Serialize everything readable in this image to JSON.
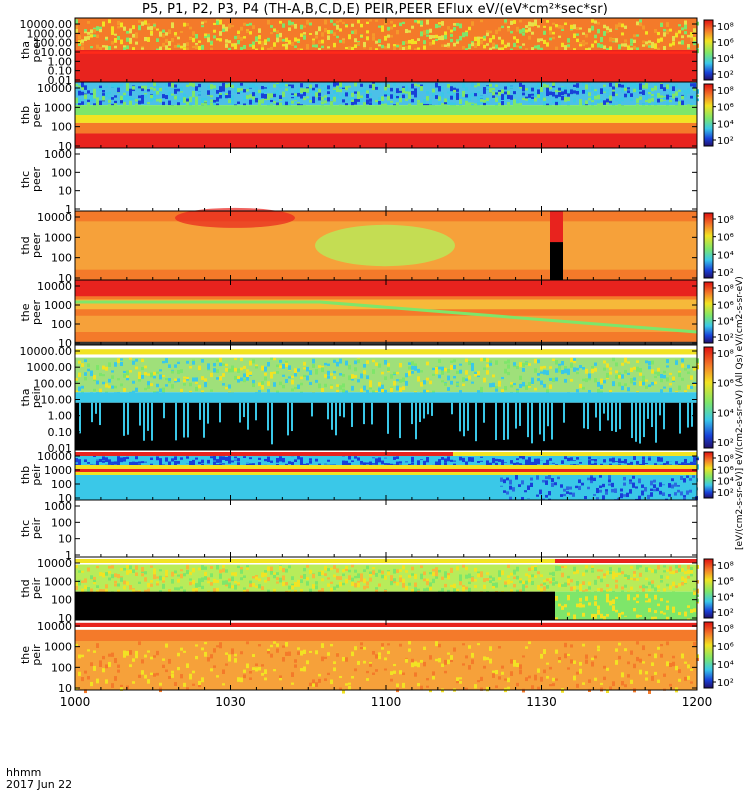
{
  "title": "P5, P1, P2, P3, P4 (TH-A,B,C,D,E) PEIR,PEER EFlux eV/(eV*cm²*sec*sr)",
  "colorbar_label": "[eV/(cm2-s-sr-eV)] eV/(cm2-s-sr-eV) (All Qs) eV/(cm2-s-sr-eV)",
  "footer": {
    "line1": "hhmm",
    "line2": "2017 Jun 22"
  },
  "x_ticks": [
    "1000",
    "1030",
    "1100",
    "1130",
    "1200"
  ],
  "colorbar_ticks": [
    "10⁸",
    "10⁶",
    "10⁴",
    "10²"
  ],
  "colors": {
    "red": "#e8231e",
    "orange": "#f47a2a",
    "yellow": "#f2e323",
    "green": "#7ee66a",
    "cyan": "#3ac8e8",
    "blue": "#1840d8",
    "black": "#000000"
  },
  "chart_data": {
    "type": "heatmap",
    "x_range": [
      "1000",
      "1200"
    ],
    "x_units": "hhmm",
    "panels": [
      {
        "probe": "tha",
        "species": "peer",
        "yticks": [
          "10000.00",
          "1000.00",
          "100.00",
          "10.00",
          "1.00",
          "0.10",
          "0.01"
        ],
        "has_data": true,
        "colorbar": true
      },
      {
        "probe": "thb",
        "species": "peer",
        "yticks": [
          "10000",
          "1000",
          "100",
          "10"
        ],
        "has_data": true,
        "colorbar": true
      },
      {
        "probe": "thc",
        "species": "peer",
        "yticks": [
          "1000",
          "100",
          "10",
          "1"
        ],
        "has_data": false,
        "colorbar": false
      },
      {
        "probe": "thd",
        "species": "peer",
        "yticks": [
          "10000",
          "1000",
          "100",
          "10"
        ],
        "has_data": true,
        "colorbar": true
      },
      {
        "probe": "the",
        "species": "peer",
        "yticks": [
          "10000",
          "1000",
          "100",
          "10"
        ],
        "has_data": true,
        "colorbar": true
      },
      {
        "probe": "tha",
        "species": "peir",
        "yticks": [
          "10000.00",
          "1000.00",
          "100.00",
          "10.00",
          "1.00",
          "0.10",
          "0.01"
        ],
        "has_data": true,
        "colorbar": true
      },
      {
        "probe": "thb",
        "species": "peir",
        "yticks": [
          "10000",
          "1000",
          "100",
          "10"
        ],
        "has_data": true,
        "colorbar": true
      },
      {
        "probe": "thc",
        "species": "peir",
        "yticks": [
          "1000",
          "100",
          "10",
          "1"
        ],
        "has_data": false,
        "colorbar": false
      },
      {
        "probe": "thd",
        "species": "peir",
        "yticks": [
          "10000",
          "1000",
          "100",
          "10"
        ],
        "has_data": true,
        "colorbar": true
      },
      {
        "probe": "the",
        "species": "peir",
        "yticks": [
          "10000",
          "1000",
          "100",
          "10"
        ],
        "has_data": true,
        "colorbar": true
      }
    ]
  }
}
